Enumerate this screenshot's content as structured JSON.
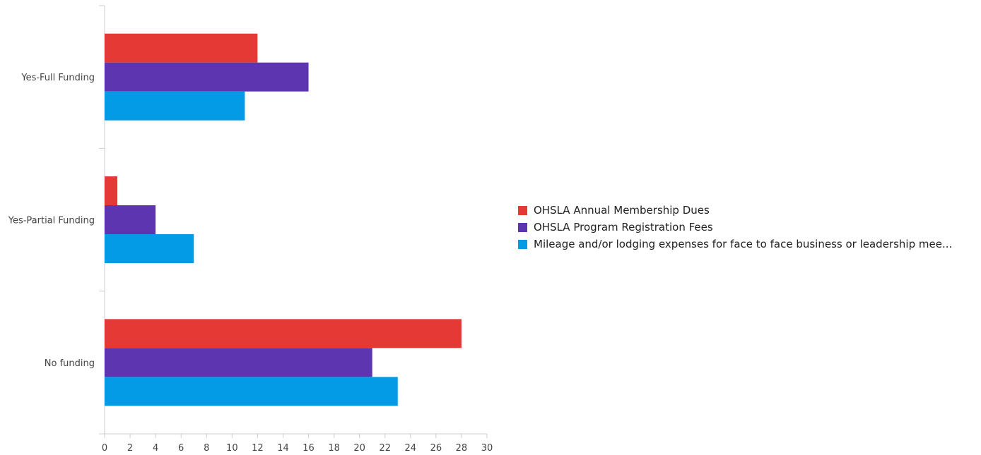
{
  "chart_data": {
    "type": "bar",
    "orientation": "horizontal",
    "categories": [
      "Yes-Full Funding",
      "Yes-Partial Funding",
      "No funding"
    ],
    "series": [
      {
        "name": "OHSLA Annual Membership Dues",
        "color": "#e53935",
        "values": [
          12,
          1,
          28
        ]
      },
      {
        "name": "OHSLA Program Registration Fees",
        "color": "#5e35b1",
        "values": [
          16,
          4,
          21
        ]
      },
      {
        "name": "Mileage and/or lodging expenses for face to face business or leadership mee...",
        "color": "#039be5",
        "values": [
          11,
          7,
          23
        ]
      }
    ],
    "xlim": [
      0,
      30
    ],
    "x_ticks": [
      "0",
      "2",
      "4",
      "6",
      "8",
      "10",
      "12",
      "14",
      "16",
      "18",
      "20",
      "22",
      "24",
      "26",
      "28",
      "30"
    ],
    "grid": false,
    "legend_position": "right"
  }
}
